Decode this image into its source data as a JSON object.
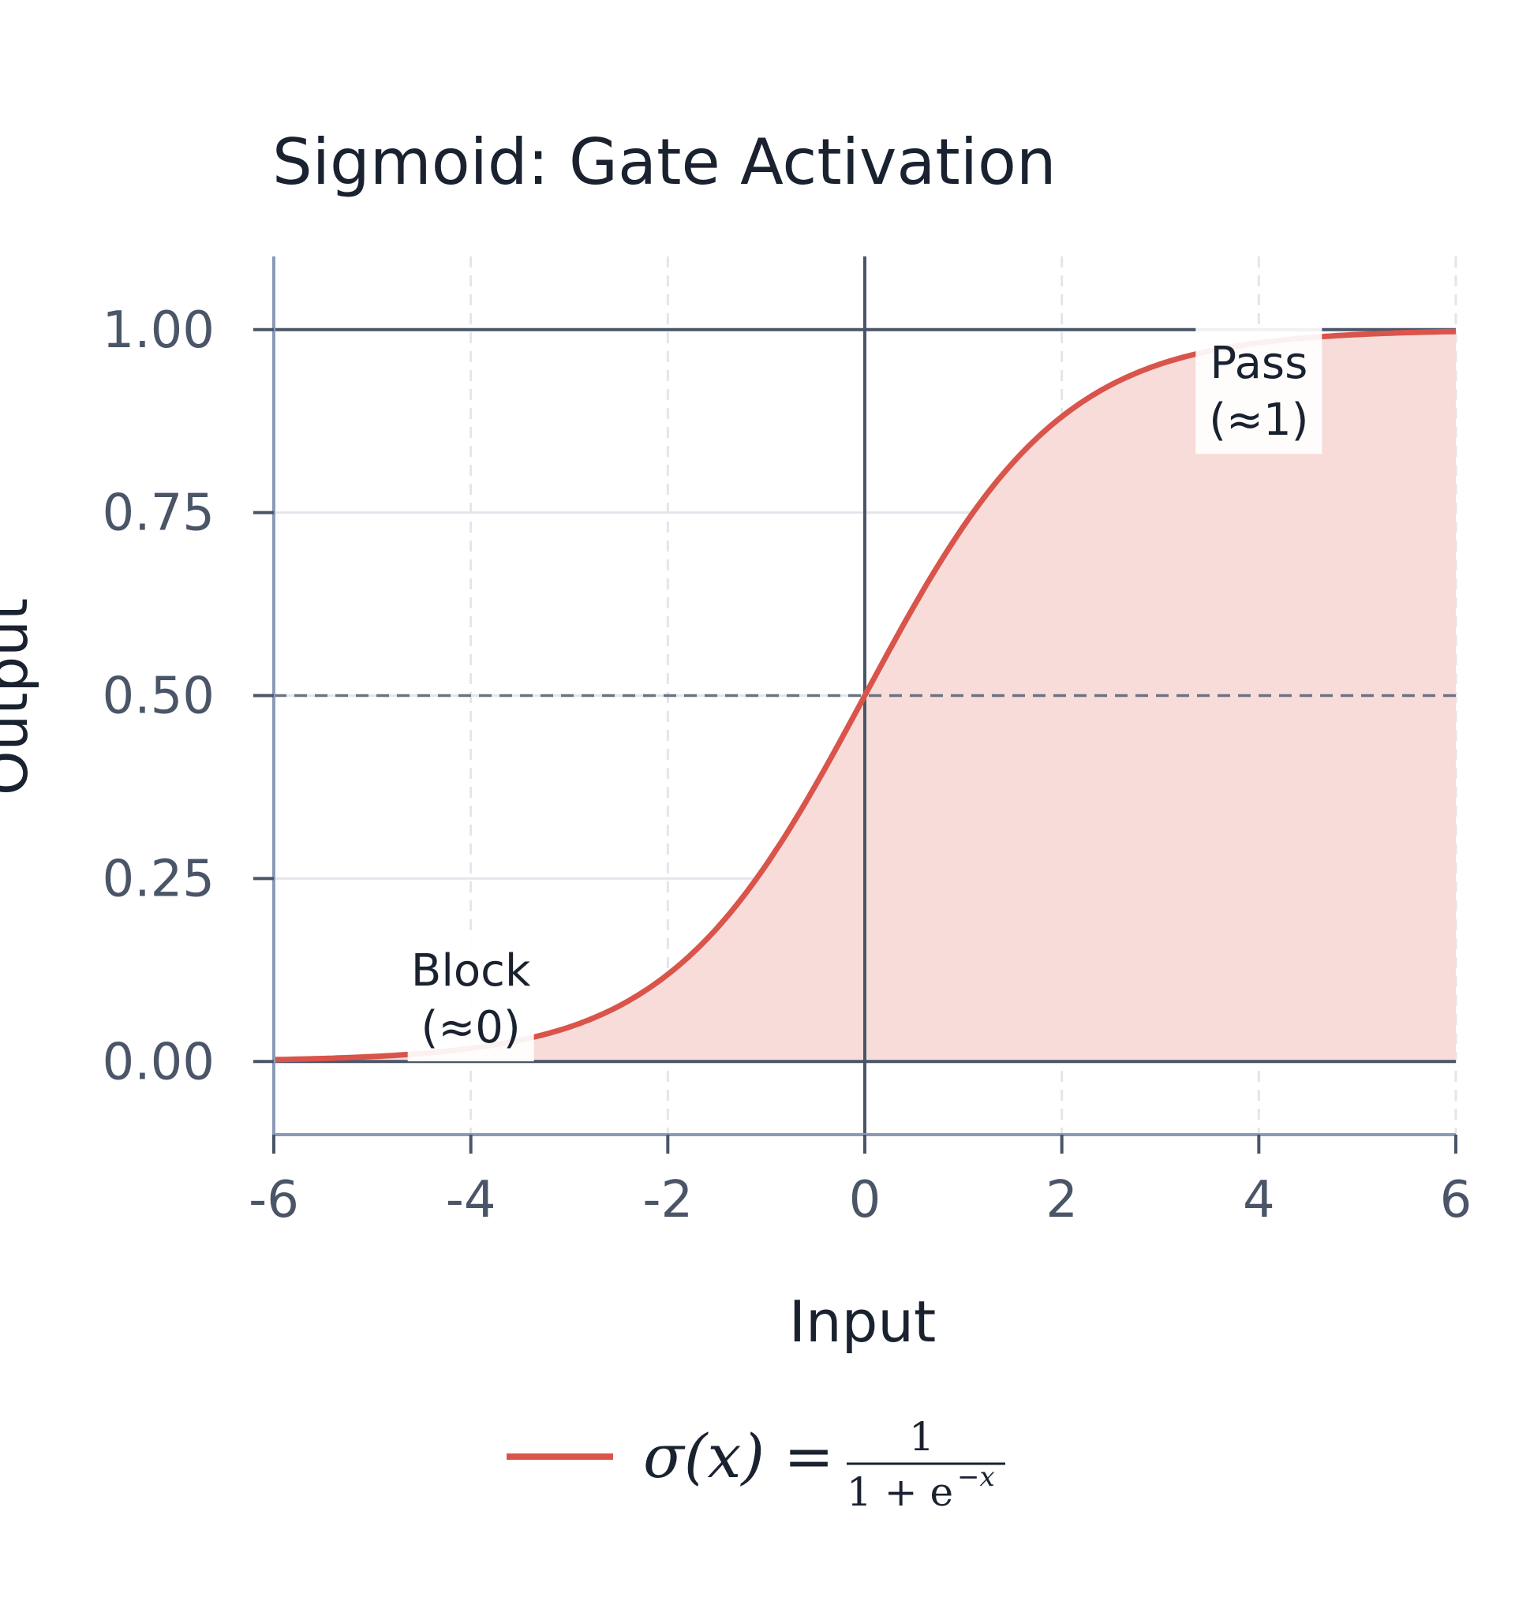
{
  "chart_data": {
    "type": "line",
    "title": "Sigmoid: Gate Activation",
    "xlabel": "Input",
    "ylabel": "Output",
    "xlim": [
      -6,
      6
    ],
    "ylim": [
      -0.1,
      1.1
    ],
    "x_ticks": [
      -6,
      -4,
      -2,
      0,
      2,
      4,
      6
    ],
    "y_ticks": [
      0.0,
      0.25,
      0.5,
      0.75,
      1.0
    ],
    "y_tick_labels": [
      "0.00",
      "0.25",
      "0.50",
      "0.75",
      "1.00"
    ],
    "grid": true,
    "legend_placement": "bottom-center",
    "series": [
      {
        "name": "σ(x) = 1 / (1 + e^(−x))",
        "color": "#d9544a",
        "fill_color": "#f8dcda",
        "x": [
          -6,
          -5,
          -4,
          -3,
          -2,
          -1,
          0,
          1,
          2,
          3,
          4,
          5,
          6
        ],
        "y": [
          0.0025,
          0.0067,
          0.018,
          0.047,
          0.119,
          0.269,
          0.5,
          0.731,
          0.881,
          0.953,
          0.982,
          0.9933,
          0.9975
        ]
      }
    ],
    "reference_lines": [
      {
        "orientation": "horizontal",
        "y": 0.5,
        "style": "dashed"
      },
      {
        "orientation": "horizontal",
        "y": 0.0,
        "style": "solid"
      },
      {
        "orientation": "horizontal",
        "y": 1.0,
        "style": "solid"
      },
      {
        "orientation": "vertical",
        "x": 0,
        "style": "solid"
      }
    ],
    "annotations": [
      {
        "line1": "Pass",
        "line2": "(≈1)",
        "x": 4,
        "y": 0.91
      },
      {
        "line1": "Block",
        "line2": "(≈0)",
        "x": -4,
        "y": 0.08
      }
    ],
    "legend": {
      "sigma_text": "σ(x) =",
      "numerator": "1",
      "denominator": "1 + e",
      "exponent": "−x"
    }
  }
}
